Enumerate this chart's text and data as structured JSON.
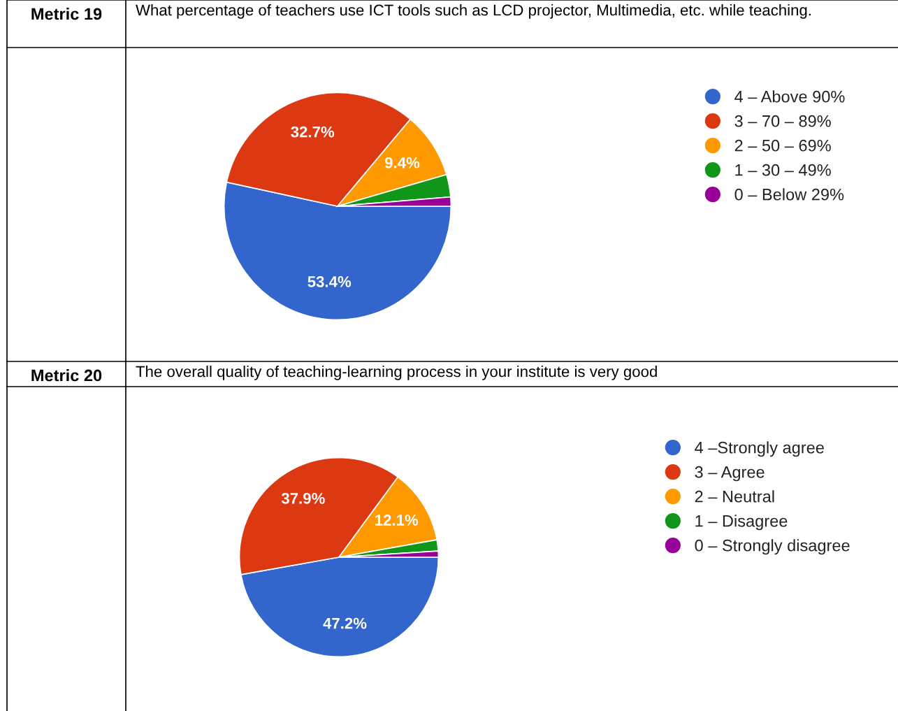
{
  "chart_data": [
    {
      "type": "pie",
      "title": "Metric 19",
      "subtitle": "What percentage of teachers use ICT tools such as LCD projector, Multimedia, etc. while teaching.",
      "categories": [
        "4 – Above 90%",
        "3 – 70 – 89%",
        "2 – 50 – 69%",
        "1 – 30 – 49%",
        "0 – Below 29%"
      ],
      "values": [
        53.4,
        32.7,
        9.4,
        3.2,
        1.3
      ],
      "colors": [
        "#3366cc",
        "#dc3912",
        "#ff9900",
        "#109618",
        "#990099"
      ],
      "value_labels": [
        "53.4%",
        "32.7%",
        "9.4%",
        null,
        null
      ],
      "legend": "right"
    },
    {
      "type": "pie",
      "title": "Metric 20",
      "subtitle": "The overall quality of teaching-learning process in your institute is very good",
      "categories": [
        "4 –Strongly agree",
        "3 – Agree",
        "2 – Neutral",
        "1 – Disagree",
        "0 – Strongly disagree"
      ],
      "values": [
        47.2,
        37.9,
        12.1,
        1.8,
        1.0
      ],
      "colors": [
        "#3366cc",
        "#dc3912",
        "#ff9900",
        "#109618",
        "#990099"
      ],
      "value_labels": [
        "47.2%",
        "37.9%",
        "12.1%",
        null,
        null
      ],
      "legend": "right"
    }
  ]
}
